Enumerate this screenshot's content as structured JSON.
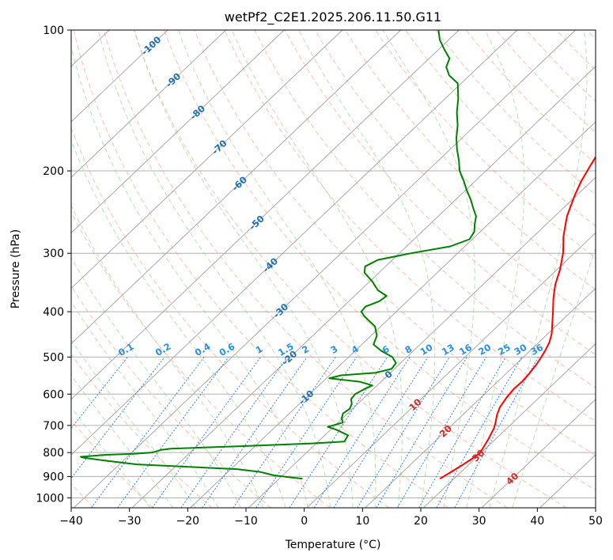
{
  "chart_data": {
    "type": "line",
    "title": "wetPf2_C2E1.2025.206.11.50.G11",
    "xlabel": "Temperature (°C)",
    "ylabel": "Pressure (hPa)",
    "xlim": [
      -40,
      50
    ],
    "ylim": [
      1050,
      100
    ],
    "y_scale": "log",
    "x_ticks": [
      -40,
      -30,
      -20,
      -10,
      0,
      10,
      20,
      30,
      40,
      50
    ],
    "x_tick_labels": [
      "−40",
      "−30",
      "−20",
      "−10",
      "0",
      "10",
      "20",
      "30",
      "40",
      "50"
    ],
    "y_ticks": [
      100,
      200,
      300,
      400,
      500,
      600,
      700,
      800,
      900,
      1000
    ],
    "y_tick_labels": [
      "100",
      "200",
      "300",
      "400",
      "500",
      "600",
      "700",
      "800",
      "900",
      "1000"
    ],
    "grid": true,
    "skew_x": true,
    "series": [
      {
        "role": "temperature",
        "color": "#ff0000",
        "points": [
          [
            27.6,
            910
          ],
          [
            28.3,
            880
          ],
          [
            29.0,
            850
          ],
          [
            29.6,
            820
          ],
          [
            29.8,
            800
          ],
          [
            29.4,
            780
          ],
          [
            28.8,
            750
          ],
          [
            28.3,
            730
          ],
          [
            27.8,
            710
          ],
          [
            27.0,
            690
          ],
          [
            25.9,
            665
          ],
          [
            25.0,
            640
          ],
          [
            24.4,
            610
          ],
          [
            24.1,
            585
          ],
          [
            24.2,
            565
          ],
          [
            24.0,
            545
          ],
          [
            23.6,
            520
          ],
          [
            23.2,
            505
          ],
          [
            22.6,
            485
          ],
          [
            21.8,
            465
          ],
          [
            20.6,
            445
          ],
          [
            19.0,
            425
          ],
          [
            16.9,
            400
          ],
          [
            14.6,
            375
          ],
          [
            12.4,
            350
          ],
          [
            10.5,
            325
          ],
          [
            8.1,
            300
          ],
          [
            5.0,
            275
          ],
          [
            2.1,
            250
          ],
          [
            -0.4,
            225
          ],
          [
            -1.8,
            210
          ],
          [
            -3.0,
            195
          ],
          [
            -4.2,
            180
          ],
          [
            -5.6,
            165
          ],
          [
            -6.6,
            152
          ],
          [
            -7.5,
            145
          ],
          [
            -7.2,
            140
          ],
          [
            -6.2,
            133
          ],
          [
            -4.5,
            128
          ],
          [
            -4.0,
            125
          ],
          [
            -3.2,
            120
          ],
          [
            -1.6,
            115
          ],
          [
            0.1,
            110
          ],
          [
            1.1,
            106
          ],
          [
            1.6,
            103
          ],
          [
            2.0,
            100
          ]
        ]
      },
      {
        "role": "dewpoint",
        "color": "#008000",
        "points": [
          [
            4.0,
            910
          ],
          [
            2.0,
            905
          ],
          [
            -1.5,
            895
          ],
          [
            -4.5,
            880
          ],
          [
            -9.0,
            868
          ],
          [
            -18.0,
            858
          ],
          [
            -27.0,
            848
          ],
          [
            -34.0,
            830
          ],
          [
            -37.5,
            820
          ],
          [
            -38.0,
            817
          ],
          [
            -34.0,
            809
          ],
          [
            -29.5,
            805
          ],
          [
            -26.5,
            800
          ],
          [
            -25.5,
            790
          ],
          [
            -24.0,
            785
          ],
          [
            -12.0,
            775
          ],
          [
            -1.0,
            765
          ],
          [
            4.5,
            758
          ],
          [
            4.0,
            735
          ],
          [
            1.0,
            715
          ],
          [
            -1.0,
            705
          ],
          [
            0.8,
            690
          ],
          [
            -0.2,
            675
          ],
          [
            -0.8,
            660
          ],
          [
            -0.5,
            645
          ],
          [
            -1.0,
            630
          ],
          [
            -2.0,
            615
          ],
          [
            -2.2,
            600
          ],
          [
            -1.5,
            585
          ],
          [
            -0.8,
            575
          ],
          [
            -3.5,
            565
          ],
          [
            -9.5,
            555
          ],
          [
            -8.0,
            547
          ],
          [
            -2.5,
            540
          ],
          [
            -0.5,
            530
          ],
          [
            -0.8,
            515
          ],
          [
            -2.5,
            500
          ],
          [
            -5.5,
            485
          ],
          [
            -8.0,
            470
          ],
          [
            -9.0,
            450
          ],
          [
            -11.0,
            430
          ],
          [
            -14.5,
            410
          ],
          [
            -16.0,
            400
          ],
          [
            -16.2,
            390
          ],
          [
            -14.8,
            380
          ],
          [
            -14.5,
            370
          ],
          [
            -17.0,
            360
          ],
          [
            -19.5,
            345
          ],
          [
            -22.5,
            330
          ],
          [
            -23.5,
            320
          ],
          [
            -22.5,
            310
          ],
          [
            -18.0,
            300
          ],
          [
            -12.5,
            290
          ],
          [
            -10.5,
            280
          ],
          [
            -11.0,
            270
          ],
          [
            -12.3,
            260
          ],
          [
            -13.5,
            250
          ],
          [
            -15.5,
            240
          ],
          [
            -17.5,
            230
          ],
          [
            -19.8,
            220
          ],
          [
            -22.0,
            210
          ],
          [
            -24.5,
            200
          ],
          [
            -26.5,
            190
          ],
          [
            -28.8,
            180
          ],
          [
            -31.0,
            170
          ],
          [
            -33.0,
            160
          ],
          [
            -35.5,
            150
          ],
          [
            -37.8,
            140
          ],
          [
            -40.6,
            130
          ],
          [
            -43.5,
            125
          ],
          [
            -45.5,
            120
          ],
          [
            -46.5,
            115
          ],
          [
            -49.0,
            110
          ],
          [
            -51.5,
            105
          ],
          [
            -53.5,
            100
          ]
        ]
      }
    ],
    "isotherm_labels": [
      "-100",
      "-90",
      "-80",
      "-70",
      "-60",
      "-50",
      "-40",
      "-30",
      "-20",
      "-10",
      "0",
      "10",
      "20",
      "30",
      "40"
    ],
    "isotherm_values": [
      -100,
      -90,
      -80,
      -70,
      -60,
      -50,
      -40,
      -30,
      -20,
      -10,
      0,
      10,
      20,
      30,
      40
    ],
    "mixing_ratio_labels": [
      "0.1",
      "0.2",
      "0.4",
      "0.6",
      "1",
      "1.5",
      "2",
      "3",
      "4",
      "6",
      "8",
      "10",
      "13",
      "16",
      "20",
      "25",
      "30",
      "36"
    ],
    "mixing_ratio_values": [
      0.1,
      0.2,
      0.4,
      0.6,
      1,
      1.5,
      2,
      3,
      4,
      6,
      8,
      10,
      13,
      16,
      20,
      25,
      30,
      36
    ],
    "colors": {
      "isotherm": "#a0a0a0",
      "dry_adiabat": "#ff8c69",
      "moist_adiabat": "#8fcc8f",
      "mixing_ratio": "#1f77e0",
      "cold_label": "#1f6fb0",
      "warm_label": "#d62728",
      "mixing_label": "#2a8fe8",
      "grid": "#b0b0b0"
    }
  }
}
